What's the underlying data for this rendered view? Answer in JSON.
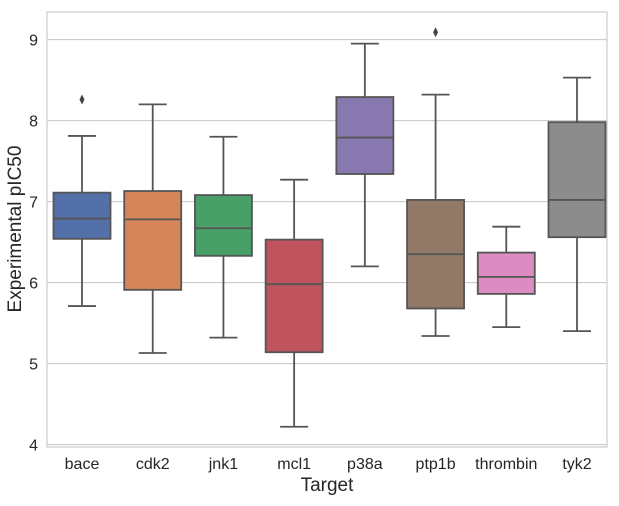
{
  "chart_data": {
    "type": "box",
    "title": "",
    "xlabel": "Target",
    "ylabel": "Experimental pIC50",
    "ylim": [
      3.97,
      9.34
    ],
    "yticks": [
      4,
      5,
      6,
      7,
      8,
      9
    ],
    "grid": "horizontal",
    "categories": [
      "bace",
      "cdk2",
      "jnk1",
      "mcl1",
      "p38a",
      "ptp1b",
      "thrombin",
      "tyk2"
    ],
    "colors": [
      "#5470a8",
      "#d6855b",
      "#48a068",
      "#c0545e",
      "#8878b0",
      "#927866",
      "#dc8cc0",
      "#8c8c8c"
    ],
    "boxes": [
      {
        "whisker_low": 5.71,
        "q1": 6.54,
        "median": 6.79,
        "q3": 7.11,
        "whisker_high": 7.81,
        "outliers": [
          8.26
        ]
      },
      {
        "whisker_low": 5.13,
        "q1": 5.91,
        "median": 6.78,
        "q3": 7.13,
        "whisker_high": 8.2,
        "outliers": []
      },
      {
        "whisker_low": 5.32,
        "q1": 6.33,
        "median": 6.67,
        "q3": 7.08,
        "whisker_high": 7.8,
        "outliers": []
      },
      {
        "whisker_low": 4.22,
        "q1": 5.14,
        "median": 5.98,
        "q3": 6.53,
        "whisker_high": 7.27,
        "outliers": []
      },
      {
        "whisker_low": 6.2,
        "q1": 7.34,
        "median": 7.79,
        "q3": 8.29,
        "whisker_high": 8.95,
        "outliers": []
      },
      {
        "whisker_low": 5.34,
        "q1": 5.68,
        "median": 6.35,
        "q3": 7.02,
        "whisker_high": 8.32,
        "outliers": [
          9.09
        ]
      },
      {
        "whisker_low": 5.45,
        "q1": 5.86,
        "median": 6.07,
        "q3": 6.37,
        "whisker_high": 6.69,
        "outliers": []
      },
      {
        "whisker_low": 5.4,
        "q1": 6.56,
        "median": 7.02,
        "q3": 7.98,
        "whisker_high": 8.53,
        "outliers": []
      }
    ]
  }
}
